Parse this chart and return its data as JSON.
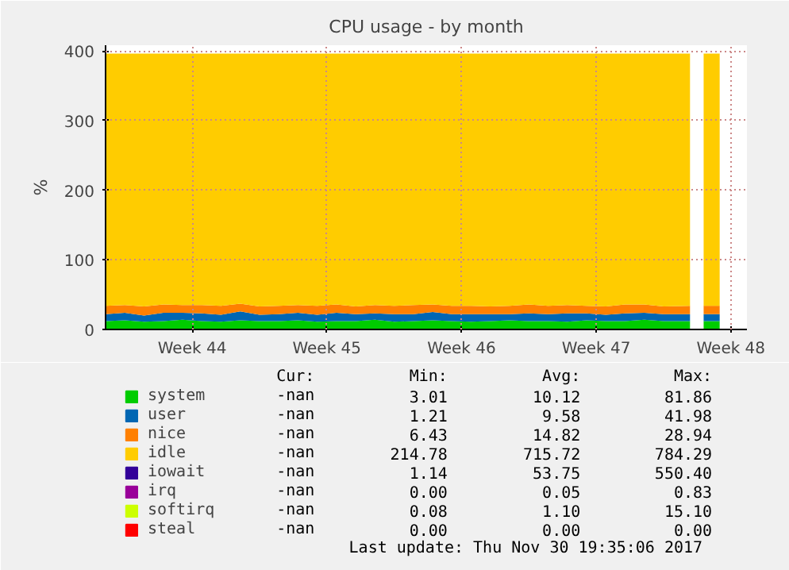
{
  "chart_data": {
    "type": "area",
    "stacked": true,
    "title": "CPU usage - by month",
    "ylabel": "%",
    "x": [
      "2017-10-25T12:00",
      "2017-10-26T12:00",
      "2017-10-27T12:00",
      "2017-10-28T12:00",
      "2017-10-29T12:00",
      "2017-10-30T12:00",
      "2017-10-31T12:00",
      "2017-11-01T12:00",
      "2017-11-02T12:00",
      "2017-11-03T12:00",
      "2017-11-04T12:00",
      "2017-11-05T12:00",
      "2017-11-06T12:00",
      "2017-11-07T12:00",
      "2017-11-08T12:00",
      "2017-11-09T12:00",
      "2017-11-10T12:00",
      "2017-11-11T12:00",
      "2017-11-12T12:00",
      "2017-11-13T12:00",
      "2017-11-14T12:00",
      "2017-11-15T12:00",
      "2017-11-16T12:00",
      "2017-11-17T12:00",
      "2017-11-18T12:00",
      "2017-11-19T12:00",
      "2017-11-20T12:00",
      "2017-11-21T12:00",
      "2017-11-22T12:00",
      "2017-11-23T12:00",
      "2017-11-24T21:00",
      "2017-11-25T06:00",
      "2017-11-25T14:00",
      "2017-11-26T10:00"
    ],
    "series": [
      {
        "name": "system",
        "color": "#00cc00",
        "values": [
          12,
          13,
          11,
          12,
          14,
          12,
          11,
          13,
          12,
          12,
          13,
          11,
          12,
          12,
          14,
          11,
          12,
          13,
          12,
          11,
          12,
          13,
          12,
          12,
          11,
          13,
          12,
          12,
          14,
          12,
          12,
          null,
          12,
          12
        ]
      },
      {
        "name": "user",
        "color": "#0066b3",
        "values": [
          10,
          11,
          9,
          12,
          10,
          11,
          10,
          13,
          9,
          10,
          11,
          10,
          12,
          10,
          9,
          11,
          10,
          12,
          10,
          11,
          10,
          9,
          11,
          10,
          12,
          10,
          9,
          11,
          10,
          10,
          10,
          null,
          10,
          10
        ]
      },
      {
        "name": "nice",
        "color": "#ff8000",
        "values": [
          12,
          11,
          13,
          12,
          11,
          12,
          13,
          11,
          12,
          12,
          11,
          13,
          12,
          11,
          12,
          12,
          13,
          11,
          12,
          12,
          11,
          12,
          13,
          12,
          12,
          11,
          12,
          13,
          12,
          11,
          12,
          null,
          12,
          12
        ]
      },
      {
        "name": "idle",
        "color": "#ffcc00",
        "values": [
          362,
          361,
          363,
          360,
          361,
          361,
          362,
          359,
          363,
          362,
          361,
          362,
          360,
          363,
          361,
          362,
          361,
          360,
          362,
          362,
          363,
          362,
          360,
          362,
          361,
          362,
          363,
          360,
          360,
          363,
          362,
          null,
          362,
          362
        ]
      },
      {
        "name": "iowait",
        "color": "#330099",
        "values": [
          null,
          null,
          null,
          null,
          null,
          null,
          null,
          null,
          null,
          null,
          null,
          null,
          null,
          null,
          null,
          null,
          null,
          null,
          null,
          null,
          null,
          null,
          null,
          null,
          null,
          null,
          null,
          null,
          null,
          null,
          null,
          null,
          null,
          null
        ]
      },
      {
        "name": "irq",
        "color": "#990099",
        "values": [
          null,
          null,
          null,
          null,
          null,
          null,
          null,
          null,
          null,
          null,
          null,
          null,
          null,
          null,
          null,
          null,
          null,
          null,
          null,
          null,
          null,
          null,
          null,
          null,
          null,
          null,
          null,
          null,
          null,
          null,
          null,
          null,
          null,
          null
        ]
      },
      {
        "name": "softirq",
        "color": "#ccff00",
        "values": [
          null,
          null,
          null,
          null,
          null,
          null,
          null,
          null,
          null,
          null,
          null,
          null,
          null,
          null,
          null,
          null,
          null,
          null,
          null,
          null,
          null,
          null,
          null,
          null,
          null,
          null,
          null,
          null,
          null,
          null,
          null,
          null,
          null,
          null
        ]
      },
      {
        "name": "steal",
        "color": "#ff0000",
        "values": [
          null,
          null,
          null,
          null,
          null,
          null,
          null,
          null,
          null,
          null,
          null,
          null,
          null,
          null,
          null,
          null,
          null,
          null,
          null,
          null,
          null,
          null,
          null,
          null,
          null,
          null,
          null,
          null,
          null,
          null,
          null,
          null,
          null,
          null
        ]
      }
    ],
    "xlim": [
      "2017-10-25T12:00",
      "2017-11-27T20:00"
    ],
    "xticks": [
      {
        "value": "2017-10-30",
        "label": "Week 44"
      },
      {
        "value": "2017-11-06",
        "label": "Week 45"
      },
      {
        "value": "2017-11-13",
        "label": "Week 46"
      },
      {
        "value": "2017-11-20",
        "label": "Week 47"
      },
      {
        "value": "2017-11-27",
        "label": "Week 48"
      }
    ],
    "ylim": [
      0,
      408
    ],
    "yticks": [
      0,
      100,
      200,
      300,
      400
    ],
    "grid": true,
    "legend": "bottom",
    "annotations": [
      "Cur:",
      "Min:",
      "Avg:",
      "Max:",
      "-nan",
      "3.01",
      "10.12",
      "81.86",
      "-nan",
      "1.21",
      "9.58",
      "41.98",
      "-nan",
      "6.43",
      "14.82",
      "28.94",
      "-nan",
      "214.78",
      "715.72",
      "784.29",
      "-nan",
      "1.14",
      "53.75",
      "550.40",
      "-nan",
      "0.00",
      "0.05",
      "0.83",
      "-nan",
      "0.08",
      "1.10",
      "15.10",
      "-nan",
      "0.00",
      "0.00",
      "0.00",
      "Last update:  Thu Nov 30 19:35:06 2017"
    ]
  }
}
